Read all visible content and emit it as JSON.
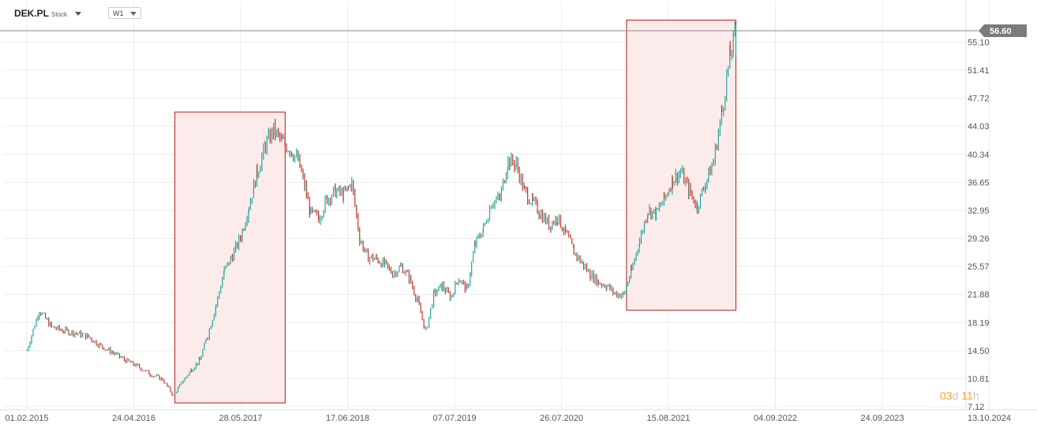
{
  "header": {
    "symbol": "DEK.PL",
    "symbol_type": "Stock",
    "timeframe": "W1"
  },
  "countdown": {
    "days_value": "03",
    "days_unit": "d",
    "hours_value": "11",
    "hours_unit": "h"
  },
  "colors": {
    "up": "#26a69a",
    "down": "#c0392b",
    "highlight_fill": "#fce8e8",
    "highlight_stroke": "#b71c1c",
    "price_tag": "#7b7b7b",
    "grid": "#ececec"
  },
  "chart_data": {
    "type": "bar",
    "title": "",
    "xlabel": "",
    "ylabel": "",
    "ylim": [
      7.12,
      58.6
    ],
    "y_ticks": [
      "55.10",
      "51.41",
      "47.72",
      "44.03",
      "40.34",
      "36.65",
      "32.95",
      "29.26",
      "25.57",
      "21.88",
      "18.19",
      "14.50",
      "10.81",
      "7.12"
    ],
    "x_ticks": [
      "01.02.2015",
      "24.04.2016",
      "28.05.2017",
      "17.06.2018",
      "07.07.2019",
      "26.07.2020",
      "15.08.2021",
      "04.09.2022",
      "24.09.2023",
      "13.10.2024"
    ],
    "current_price": "56.60",
    "grid": true,
    "highlight_ranges": [
      {
        "x_start": 2016.8,
        "x_end": 2018.14,
        "y_low": 7.6,
        "y_high": 45.9
      },
      {
        "x_start": 2022.29,
        "x_end": 2023.62,
        "y_low": 19.8,
        "y_high": 58.0
      }
    ],
    "series": [
      {
        "values": [
          [
            2015.0,
            14.5
          ],
          [
            2015.15,
            19.8
          ],
          [
            2015.3,
            17.6
          ],
          [
            2015.45,
            17.1
          ],
          [
            2015.6,
            16.8
          ],
          [
            2015.75,
            16.3
          ],
          [
            2015.9,
            15.1
          ],
          [
            2016.05,
            14.2
          ],
          [
            2016.2,
            13.2
          ],
          [
            2016.35,
            12.4
          ],
          [
            2016.5,
            11.4
          ],
          [
            2016.65,
            10.7
          ],
          [
            2016.78,
            8.6
          ],
          [
            2016.9,
            10.5
          ],
          [
            2017.0,
            12.0
          ],
          [
            2017.1,
            13.2
          ],
          [
            2017.2,
            16.5
          ],
          [
            2017.3,
            20.5
          ],
          [
            2017.4,
            25.0
          ],
          [
            2017.5,
            27.0
          ],
          [
            2017.6,
            29.5
          ],
          [
            2017.7,
            33.5
          ],
          [
            2017.8,
            38.0
          ],
          [
            2017.9,
            41.5
          ],
          [
            2018.0,
            43.5
          ],
          [
            2018.1,
            42.0
          ],
          [
            2018.2,
            41.0
          ],
          [
            2018.3,
            39.5
          ],
          [
            2018.38,
            36.0
          ],
          [
            2018.45,
            32.5
          ],
          [
            2018.55,
            32.0
          ],
          [
            2018.65,
            34.5
          ],
          [
            2018.75,
            35.5
          ],
          [
            2018.85,
            35.0
          ],
          [
            2018.95,
            36.5
          ],
          [
            2019.05,
            29.0
          ],
          [
            2019.15,
            26.8
          ],
          [
            2019.25,
            26.6
          ],
          [
            2019.35,
            25.8
          ],
          [
            2019.45,
            24.6
          ],
          [
            2019.55,
            25.6
          ],
          [
            2019.65,
            24.0
          ],
          [
            2019.75,
            21.0
          ],
          [
            2019.85,
            17.0
          ],
          [
            2019.95,
            22.0
          ],
          [
            2020.05,
            23.0
          ],
          [
            2020.15,
            21.5
          ],
          [
            2020.25,
            24.0
          ],
          [
            2020.35,
            22.5
          ],
          [
            2020.45,
            28.5
          ],
          [
            2020.55,
            30.5
          ],
          [
            2020.65,
            34.0
          ],
          [
            2020.75,
            34.5
          ],
          [
            2020.85,
            39.5
          ],
          [
            2020.95,
            39.0
          ],
          [
            2021.05,
            35.5
          ],
          [
            2021.15,
            34.0
          ],
          [
            2021.25,
            32.5
          ],
          [
            2021.35,
            31.0
          ],
          [
            2021.45,
            32.0
          ],
          [
            2021.55,
            30.0
          ],
          [
            2021.65,
            27.5
          ],
          [
            2021.75,
            26.0
          ],
          [
            2021.85,
            24.5
          ],
          [
            2021.95,
            23.5
          ],
          [
            2022.05,
            23.0
          ],
          [
            2022.15,
            22.0
          ],
          [
            2022.25,
            21.8
          ],
          [
            2022.35,
            25.0
          ],
          [
            2022.45,
            29.0
          ],
          [
            2022.55,
            33.0
          ],
          [
            2022.65,
            32.5
          ],
          [
            2022.75,
            34.5
          ],
          [
            2022.85,
            37.0
          ],
          [
            2022.95,
            38.0
          ],
          [
            2023.05,
            35.5
          ],
          [
            2023.15,
            33.5
          ],
          [
            2023.25,
            36.5
          ],
          [
            2023.35,
            39.5
          ],
          [
            2023.45,
            46.0
          ],
          [
            2023.55,
            53.5
          ],
          [
            2023.62,
            56.6
          ]
        ]
      }
    ]
  }
}
